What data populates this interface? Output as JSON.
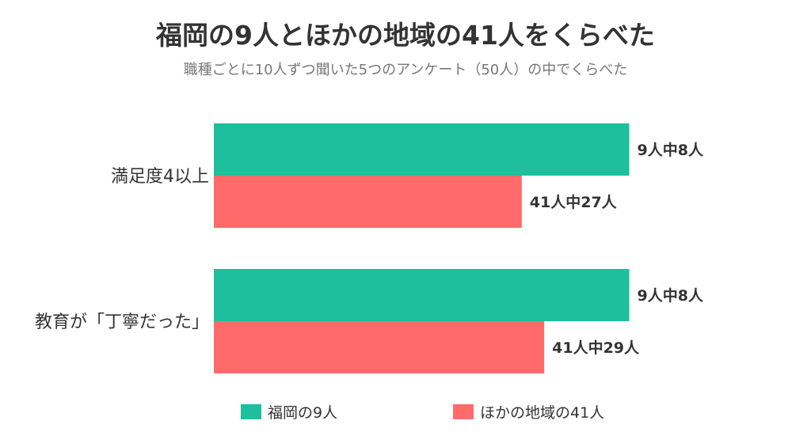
{
  "colors": {
    "fukuoka": "#1DBF9C",
    "other": "#FF6B6B"
  },
  "header": {
    "title": "福岡の9人とほかの地域の41人をくらべた",
    "subtitle": "職種ごとに10人ずつ聞いた5つのアンケート（50人）の中でくらべた"
  },
  "legend": {
    "fukuoka_label": "福岡の9人",
    "other_label": "ほかの地域の41人"
  },
  "chart_data": {
    "type": "bar",
    "orientation": "horizontal",
    "title": "福岡の9人とほかの地域の41人をくらべた",
    "subtitle": "職種ごとに10人ずつ聞いた5つのアンケート（50人）の中でくらべた",
    "categories": [
      "満足度4以上",
      "教育が「丁寧だった」"
    ],
    "series": [
      {
        "name": "福岡の9人",
        "values": [
          0.889,
          0.889
        ],
        "labels": [
          "9人中8人",
          "9人中8人"
        ]
      },
      {
        "name": "ほかの地域の41人",
        "values": [
          0.659,
          0.707
        ],
        "labels": [
          "41人中27人",
          "41人中29人"
        ]
      }
    ],
    "xlim": [
      0,
      1
    ],
    "grid": false,
    "legend_position": "bottom"
  }
}
